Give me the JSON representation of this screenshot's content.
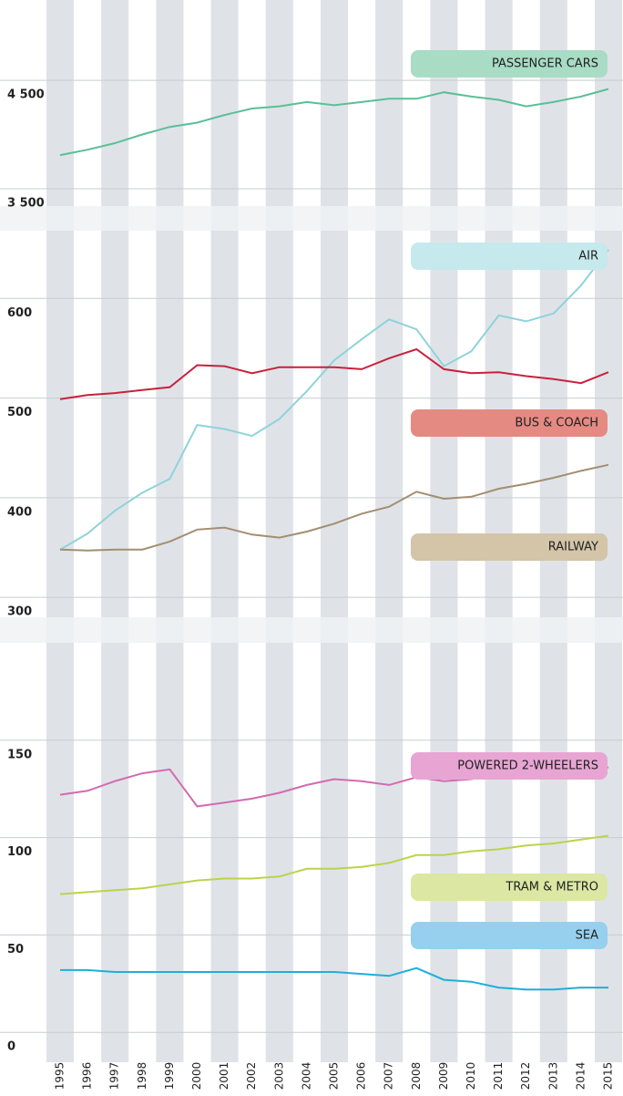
{
  "chart_data": [
    {
      "type": "line",
      "ylim": [
        3340,
        5140
      ],
      "yticks": [
        {
          "value": 3500,
          "label": "3 500"
        },
        {
          "value": 4500,
          "label": "4 500"
        }
      ],
      "grid": true,
      "series": [
        {
          "name": "PASSENGER CARS",
          "color": "#5bbf96",
          "label_color": "#a8dcc4",
          "values": [
            3810,
            3860,
            3920,
            4000,
            4070,
            4110,
            4180,
            4240,
            4260,
            4300,
            4270,
            4300,
            4330,
            4330,
            4390,
            4350,
            4320,
            4260,
            4300,
            4350,
            4420
          ]
        }
      ]
    },
    {
      "type": "line",
      "ylim": [
        280,
        668
      ],
      "yticks": [
        300,
        400,
        500,
        600
      ],
      "grid": true,
      "series": [
        {
          "name": "AIR",
          "color": "#8fd3da",
          "label_color": "#c5e9ec",
          "values": [
            348,
            364,
            387,
            405,
            419,
            473,
            469,
            462,
            479,
            507,
            538,
            559,
            579,
            569,
            532,
            547,
            583,
            577,
            585,
            613,
            649
          ]
        },
        {
          "name": "BUS & COACH",
          "color": "#c8213c",
          "label_color": "#e58a82",
          "values": [
            499,
            503,
            505,
            508,
            511,
            533,
            532,
            525,
            531,
            531,
            531,
            529,
            540,
            549,
            529,
            525,
            526,
            522,
            519,
            515,
            526
          ]
        },
        {
          "name": "RAILWAY",
          "color": "#a38e72",
          "label_color": "#d4c4a8",
          "values": [
            348,
            347,
            348,
            348,
            356,
            368,
            370,
            363,
            360,
            366,
            374,
            384,
            391,
            406,
            399,
            401,
            409,
            414,
            420,
            427,
            433
          ]
        }
      ]
    },
    {
      "type": "line",
      "ylim": [
        -13,
        200
      ],
      "yticks": [
        0,
        50,
        100,
        150
      ],
      "grid": true,
      "categories": [
        "1995",
        "1996",
        "1997",
        "1998",
        "1999",
        "2000",
        "2001",
        "2002",
        "2003",
        "2004",
        "2005",
        "2006",
        "2007",
        "2008",
        "2009",
        "2010",
        "2011",
        "2012",
        "2013",
        "2014",
        "2015"
      ],
      "series": [
        {
          "name": "POWERED 2-WHEELERS",
          "color": "#d26bb0",
          "label_color": "#e8a5d3",
          "values": [
            122,
            124,
            129,
            133,
            135,
            116,
            118,
            120,
            123,
            127,
            130,
            129,
            127,
            131,
            129,
            130,
            133,
            134,
            133,
            136,
            136
          ]
        },
        {
          "name": "TRAM & METRO",
          "color": "#bcd34a",
          "label_color": "#dbe7a3",
          "values": [
            71,
            72,
            73,
            74,
            76,
            78,
            79,
            79,
            80,
            84,
            84,
            85,
            87,
            91,
            91,
            93,
            94,
            96,
            97,
            99,
            101
          ]
        },
        {
          "name": "SEA",
          "color": "#1eaedb",
          "label_color": "#96d0ee",
          "values": [
            32,
            32,
            31,
            31,
            31,
            31,
            31,
            31,
            31,
            31,
            31,
            30,
            29,
            33,
            27,
            26,
            23,
            22,
            22,
            23,
            23
          ]
        }
      ]
    }
  ]
}
